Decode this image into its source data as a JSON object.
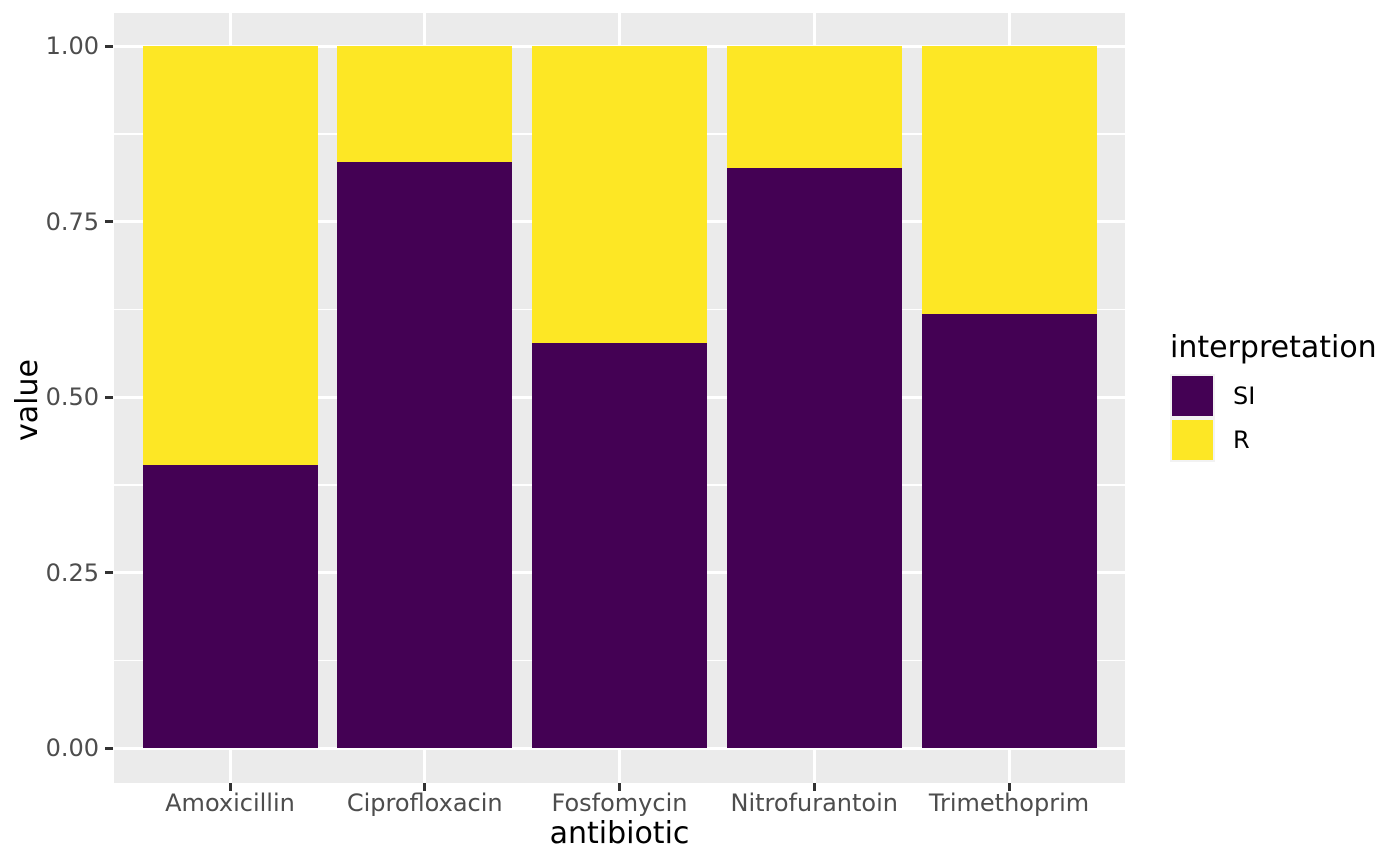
{
  "chart_data": {
    "type": "bar",
    "stacked": true,
    "normalized": true,
    "title": "",
    "xlabel": "antibiotic",
    "ylabel": "value",
    "categories": [
      "Amoxicillin",
      "Ciprofloxacin",
      "Fosfomycin",
      "Nitrofurantoin",
      "Trimethoprim"
    ],
    "series": [
      {
        "name": "SI",
        "color": "#440154",
        "values": [
          0.403,
          0.835,
          0.577,
          0.826,
          0.618
        ]
      },
      {
        "name": "R",
        "color": "#FDE725",
        "values": [
          0.597,
          0.165,
          0.423,
          0.174,
          0.382
        ]
      }
    ],
    "ylim": [
      0,
      1
    ],
    "y_ticks": [
      {
        "value": 0.0,
        "label": "0.00"
      },
      {
        "value": 0.25,
        "label": "0.25"
      },
      {
        "value": 0.5,
        "label": "0.50"
      },
      {
        "value": 0.75,
        "label": "0.75"
      },
      {
        "value": 1.0,
        "label": "1.00"
      }
    ],
    "y_minor_ticks": [
      0.125,
      0.375,
      0.625,
      0.875
    ],
    "grid": true,
    "legend": {
      "position": "right",
      "title": "interpretation",
      "entries": [
        {
          "label": "SI",
          "color": "#440154"
        },
        {
          "label": "R",
          "color": "#FDE725"
        }
      ]
    },
    "style": {
      "panel_background": "#EBEBEB",
      "grid_color": "#FFFFFF",
      "tick_mark_color": "#333333",
      "tick_label_color": "#4D4D4D",
      "axis_title_color": "#000000",
      "figure_background": "#FFFFFF"
    }
  }
}
